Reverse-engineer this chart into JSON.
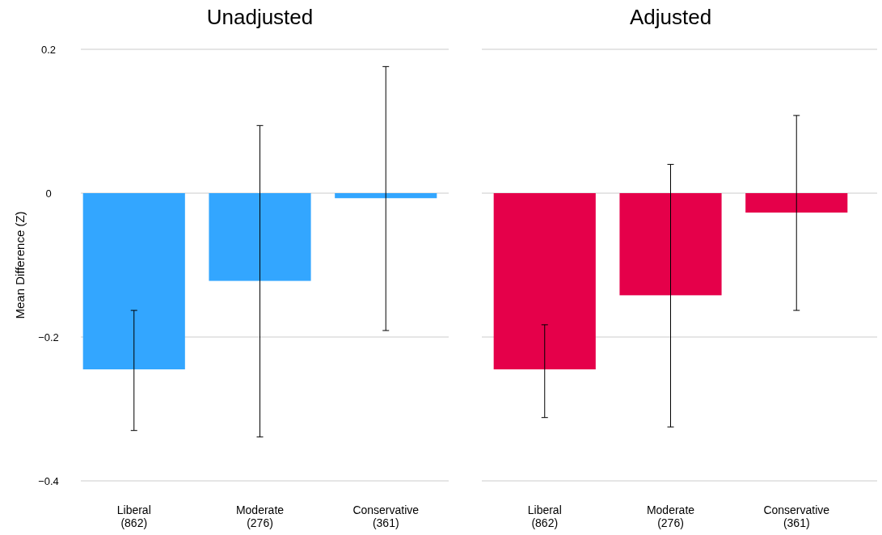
{
  "chart_data": [
    {
      "type": "bar",
      "title": "Unadjusted",
      "ylabel": "Mean Difference (Z)",
      "categories": [
        "Liberal\n(862)",
        "Moderate\n(276)",
        "Conservative\n(361)"
      ],
      "series": [
        {
          "color": "#33a6ff",
          "values": [
            -0.245,
            -0.122,
            -0.007
          ],
          "errors": [
            [
              -0.33,
              -0.163
            ],
            [
              -0.339,
              0.094
            ],
            [
              -0.191,
              0.176
            ]
          ]
        }
      ],
      "ylim": [
        -0.4,
        0.2
      ],
      "yticks": [
        {
          "value": -0.4,
          "label": "−0.4"
        },
        {
          "value": -0.2,
          "label": "−0.2"
        },
        0,
        0.2
      ],
      "grid": "y"
    },
    {
      "type": "bar",
      "title": "Adjusted",
      "categories": [
        "Liberal\n(862)",
        "Moderate\n(276)",
        "Conservative\n(361)"
      ],
      "series": [
        {
          "color": "#e5004a",
          "values": [
            -0.245,
            -0.142,
            -0.027
          ],
          "errors": [
            [
              -0.312,
              -0.183
            ],
            [
              -0.325,
              0.04
            ],
            [
              -0.163,
              0.108
            ]
          ]
        }
      ],
      "ylim": [
        -0.4,
        0.2
      ],
      "grid": "y",
      "tick_labels": "x"
    }
  ]
}
